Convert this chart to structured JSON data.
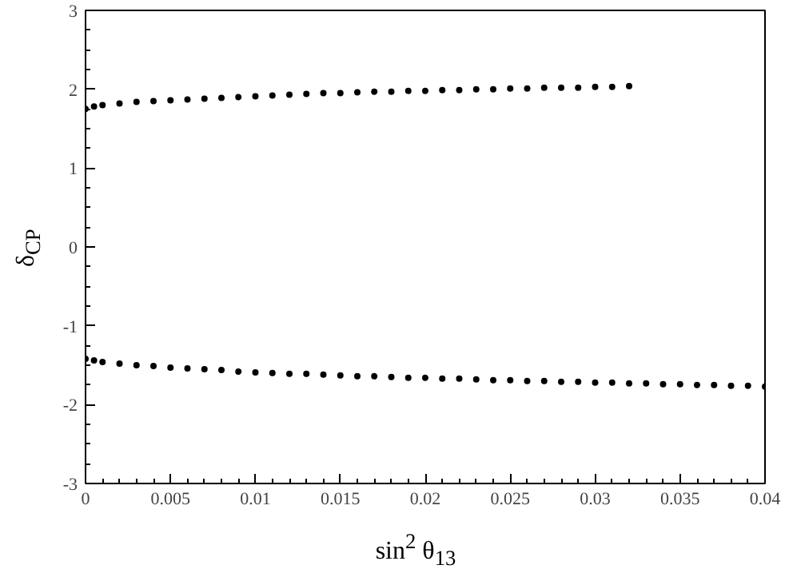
{
  "chart_data": {
    "type": "scatter",
    "xlabel": "sin$^{2}$ θ$_{13}$",
    "ylabel": "δ$_{CP}$",
    "xlim": [
      0,
      0.04
    ],
    "ylim": [
      -3,
      3
    ],
    "xticks": [
      0,
      0.005,
      0.01,
      0.015,
      0.02,
      0.025,
      0.03,
      0.035,
      0.04
    ],
    "yticks": [
      -3,
      -2,
      -1,
      0,
      1,
      2,
      3
    ],
    "grid": false,
    "marker": "circle",
    "series": [
      {
        "color": "#000000",
        "x": [
          0,
          0.0005,
          0.001,
          0.002,
          0.003,
          0.004,
          0.005,
          0.006,
          0.007,
          0.008,
          0.009,
          0.01,
          0.011,
          0.012,
          0.013,
          0.014,
          0.015,
          0.016,
          0.017,
          0.018,
          0.019,
          0.02,
          0.021,
          0.022,
          0.023,
          0.024,
          0.025,
          0.026,
          0.027,
          0.028,
          0.029,
          0.03,
          0.031,
          0.032
        ],
        "values": [
          1.75,
          1.78,
          1.8,
          1.82,
          1.84,
          1.85,
          1.86,
          1.87,
          1.88,
          1.89,
          1.9,
          1.91,
          1.92,
          1.93,
          1.94,
          1.95,
          1.95,
          1.96,
          1.97,
          1.97,
          1.98,
          1.98,
          1.99,
          1.99,
          2.0,
          2.0,
          2.01,
          2.01,
          2.02,
          2.02,
          2.02,
          2.03,
          2.03,
          2.04
        ]
      },
      {
        "color": "#000000",
        "x": [
          0,
          0.0005,
          0.001,
          0.002,
          0.003,
          0.004,
          0.005,
          0.006,
          0.007,
          0.008,
          0.009,
          0.01,
          0.011,
          0.012,
          0.013,
          0.014,
          0.015,
          0.016,
          0.017,
          0.018,
          0.019,
          0.02,
          0.021,
          0.022,
          0.023,
          0.024,
          0.025,
          0.026,
          0.027,
          0.028,
          0.029,
          0.03,
          0.031,
          0.032,
          0.033,
          0.034,
          0.035,
          0.036,
          0.037,
          0.038,
          0.039,
          0.04
        ],
        "values": [
          -1.42,
          -1.44,
          -1.46,
          -1.48,
          -1.5,
          -1.51,
          -1.53,
          -1.54,
          -1.55,
          -1.56,
          -1.58,
          -1.59,
          -1.6,
          -1.61,
          -1.61,
          -1.62,
          -1.63,
          -1.64,
          -1.64,
          -1.65,
          -1.66,
          -1.66,
          -1.67,
          -1.67,
          -1.68,
          -1.69,
          -1.69,
          -1.7,
          -1.7,
          -1.71,
          -1.71,
          -1.72,
          -1.72,
          -1.73,
          -1.73,
          -1.74,
          -1.74,
          -1.75,
          -1.75,
          -1.76,
          -1.76,
          -1.77
        ]
      }
    ]
  }
}
